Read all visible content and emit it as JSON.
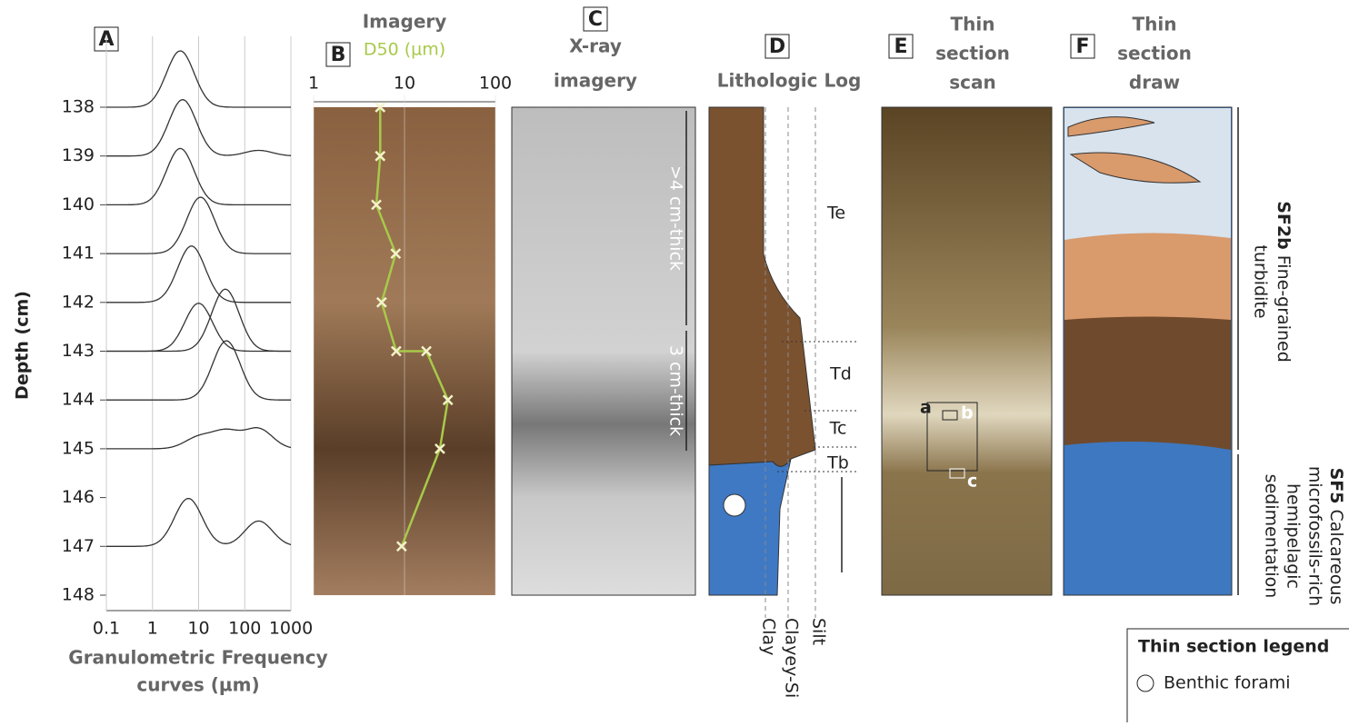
{
  "chart_data": [
    {
      "type": "frequency",
      "label": "A",
      "ylabel": "Depth (cm)",
      "xlabel": [
        "Granulometric Frequency",
        "curves (µm)"
      ],
      "ylim": [
        138,
        148
      ],
      "yticks": [
        138,
        139,
        140,
        141,
        142,
        143,
        144,
        145,
        146,
        147,
        148
      ],
      "xlim": [
        0.1,
        1000
      ],
      "xticks": [
        0.1,
        1,
        10,
        100,
        1000
      ],
      "log_x": true,
      "color": "#333333",
      "curves": [
        {
          "depth": 138,
          "modes": [
            {
              "um": 4,
              "rel": 1
            }
          ]
        },
        {
          "depth": 139,
          "modes": [
            {
              "um": 4.5,
              "rel": 1
            },
            {
              "um": 200,
              "rel": 0.1
            }
          ]
        },
        {
          "depth": 140,
          "modes": [
            {
              "um": 4,
              "rel": 1
            }
          ]
        },
        {
          "depth": 141,
          "modes": [
            {
              "um": 11,
              "rel": 1
            }
          ]
        },
        {
          "depth": 142,
          "modes": [
            {
              "um": 7,
              "rel": 1
            }
          ]
        },
        {
          "depth": 143,
          "modes": [
            {
              "um": 10,
              "rel": 0.85
            }
          ]
        },
        {
          "depth": 143,
          "modes": [
            {
              "um": 38,
              "rel": 1.1
            }
          ]
        },
        {
          "depth": 144,
          "modes": [
            {
              "um": 40,
              "rel": 1.05
            }
          ]
        },
        {
          "depth": 145,
          "modes": [
            {
              "um": 10,
              "rel": 0.2
            },
            {
              "um": 40,
              "rel": 0.3
            },
            {
              "um": 200,
              "rel": 0.35
            }
          ]
        },
        {
          "depth": 147,
          "modes": [
            {
              "um": 6,
              "rel": 0.85
            },
            {
              "um": 200,
              "rel": 0.45
            }
          ]
        }
      ]
    },
    {
      "type": "line",
      "label": "B",
      "title": "Imagery",
      "log_x": true,
      "xlim": [
        1,
        100
      ],
      "xticks": [
        1,
        10,
        100
      ],
      "ylim": [
        138,
        148
      ],
      "y": [
        138,
        139,
        140,
        141,
        142,
        143,
        143,
        144,
        145,
        147
      ],
      "series": [
        {
          "name": "D50 (µm)",
          "color": "#a8c94a",
          "values": [
            5.4,
            5.4,
            4.9,
            8,
            5.6,
            8.1,
            17.4,
            30,
            24.5,
            9.3
          ]
        }
      ]
    }
  ],
  "figure": {
    "panel_c": {
      "letter": "C",
      "title": [
        "X-ray",
        "imagery"
      ],
      "labels": [
        ">4 cm-thick",
        "3 cm-thick"
      ]
    },
    "panel_d": {
      "letter": "D",
      "title": "Lithologic Log",
      "units": [
        "Te",
        "Td",
        "Tc",
        "Tb"
      ],
      "grain_sizes": [
        "Clay",
        "Clayey-Si",
        "Silt"
      ]
    },
    "panel_e": {
      "letter": "E",
      "title": [
        "Thin",
        "section",
        "scan"
      ],
      "labels": [
        "a",
        "b",
        "c"
      ]
    },
    "panel_f": {
      "letter": "F",
      "title": [
        "Thin",
        "section",
        "draw"
      ]
    },
    "facies": [
      {
        "code": "SF2b",
        "lines": [
          "Fine-grained",
          "turbidite"
        ]
      },
      {
        "code": "SF5",
        "lines": [
          "Calcareous",
          "microfossils-rich",
          "hemipelagic",
          "sedimentation"
        ]
      }
    ],
    "legend": {
      "title": "Thin section legend",
      "items": [
        "Benthic forami"
      ]
    }
  }
}
